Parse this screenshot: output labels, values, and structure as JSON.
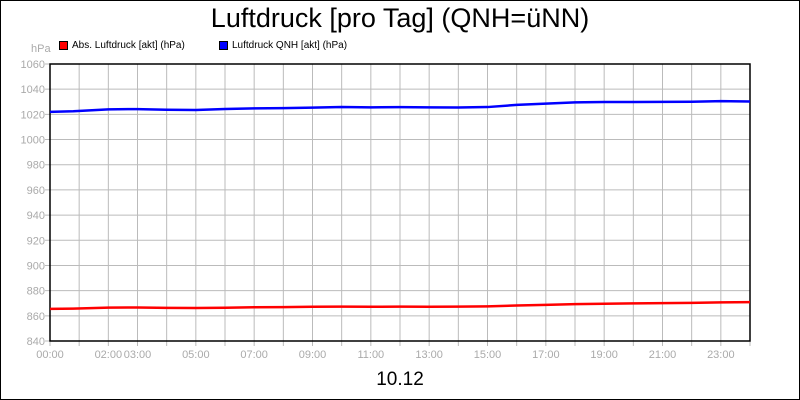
{
  "chart_data": {
    "type": "line",
    "title": "Luftdruck [pro Tag] (QNH=üNN)",
    "xlabel": "10.12",
    "ylabel": "hPa",
    "ylim": [
      840,
      1060
    ],
    "yticks": [
      840,
      860,
      880,
      900,
      920,
      940,
      960,
      980,
      1000,
      1020,
      1040,
      1060
    ],
    "xlim": [
      0,
      24
    ],
    "xtick_labels": [
      {
        "h": 0,
        "label": "00:00"
      },
      {
        "h": 2,
        "label": "02:00"
      },
      {
        "h": 3,
        "label": "03:00"
      },
      {
        "h": 5,
        "label": "05:00"
      },
      {
        "h": 7,
        "label": "07:00"
      },
      {
        "h": 9,
        "label": "09:00"
      },
      {
        "h": 11,
        "label": "11:00"
      },
      {
        "h": 13,
        "label": "13:00"
      },
      {
        "h": 15,
        "label": "15:00"
      },
      {
        "h": 17,
        "label": "17:00"
      },
      {
        "h": 19,
        "label": "19:00"
      },
      {
        "h": 21,
        "label": "21:00"
      },
      {
        "h": 23,
        "label": "23:00"
      }
    ],
    "grid": true,
    "legend": "top-left",
    "series": [
      {
        "name": "Abs. Luftdruck [akt] (hPa)",
        "color": "#ff0000",
        "x": [
          0,
          0.8,
          2,
          3,
          4,
          5,
          6,
          7,
          8,
          9,
          10,
          11,
          12,
          13,
          14,
          15,
          16,
          17,
          18,
          19,
          20,
          21,
          22,
          23,
          24
        ],
        "y": [
          865.5,
          865.7,
          866.5,
          866.6,
          866.3,
          866.2,
          866.4,
          866.8,
          866.9,
          867.2,
          867.3,
          867.2,
          867.3,
          867.2,
          867.3,
          867.5,
          868.2,
          868.7,
          869.3,
          869.6,
          869.9,
          870.1,
          870.3,
          870.7,
          870.9
        ]
      },
      {
        "name": "Luftdruck QNH [akt] (hPa)",
        "color": "#0000ff",
        "x": [
          0,
          0.8,
          2,
          3,
          4,
          5,
          6,
          7,
          8,
          9,
          10,
          11,
          12,
          13,
          14,
          15,
          16,
          17,
          18,
          19,
          20,
          21,
          22,
          23,
          24
        ],
        "y": [
          1022,
          1022.5,
          1024,
          1024.2,
          1023.7,
          1023.5,
          1024.3,
          1024.8,
          1025,
          1025.4,
          1025.8,
          1025.6,
          1025.7,
          1025.6,
          1025.5,
          1025.8,
          1027.5,
          1028.5,
          1029.5,
          1029.8,
          1029.8,
          1029.9,
          1030,
          1030.5,
          1030.2
        ]
      }
    ]
  }
}
